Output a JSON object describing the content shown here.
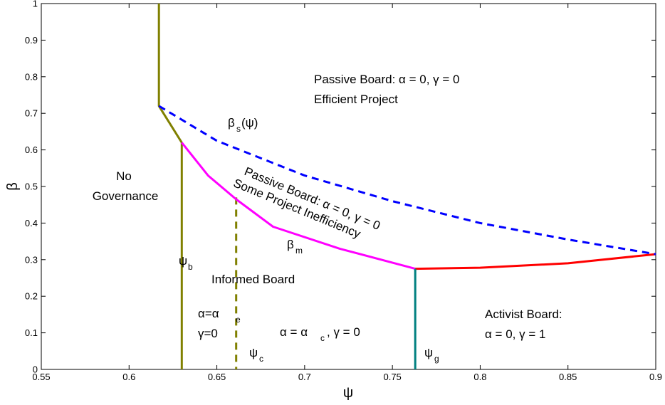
{
  "chart_data": {
    "type": "line",
    "xlabel": "ψ",
    "ylabel": "β",
    "xlim": [
      0.55,
      0.9
    ],
    "ylim": [
      0,
      1
    ],
    "xticks": [
      "0.55",
      "0.6",
      "0.65",
      "0.7",
      "0.75",
      "0.8",
      "0.85",
      "0.9"
    ],
    "yticks": [
      "0",
      "0.1",
      "0.2",
      "0.3",
      "0.4",
      "0.5",
      "0.6",
      "0.7",
      "0.8",
      "0.9",
      "1"
    ],
    "grid": false,
    "series": [
      {
        "color": "#808000",
        "dash": "solid",
        "x": [
          0.617,
          0.617,
          0.63,
          0.63
        ],
        "y": [
          1.0,
          0.72,
          0.62,
          0.0
        ]
      },
      {
        "color": "#808000",
        "dash": "dashed",
        "x": [
          0.661,
          0.661
        ],
        "y": [
          0.47,
          0.0
        ]
      },
      {
        "color": "#ff00ff",
        "dash": "solid",
        "x": [
          0.63,
          0.645,
          0.661,
          0.682,
          0.72,
          0.763
        ],
        "y": [
          0.62,
          0.53,
          0.465,
          0.39,
          0.33,
          0.275
        ]
      },
      {
        "color": "#ff0000",
        "dash": "solid",
        "x": [
          0.763,
          0.8,
          0.85,
          0.9
        ],
        "y": [
          0.275,
          0.278,
          0.29,
          0.315
        ]
      },
      {
        "color": "#0000ff",
        "dash": "dashed",
        "x": [
          0.617,
          0.65,
          0.7,
          0.75,
          0.8,
          0.85,
          0.9
        ],
        "y": [
          0.72,
          0.625,
          0.53,
          0.46,
          0.4,
          0.355,
          0.315
        ]
      },
      {
        "color": "#008080",
        "dash": "solid",
        "x": [
          0.763,
          0.763
        ],
        "y": [
          0.275,
          0.0
        ]
      }
    ],
    "annotations": {
      "passive_efficient_1": "Passive Board: α = 0, γ = 0",
      "passive_efficient_2": "Efficient Project",
      "beta_s": "β",
      "beta_s_sub": "s",
      "beta_s_arg": "(ψ)",
      "no_gov_1": "No",
      "no_gov_2": "Governance",
      "passive_ineff_1": "Passive Board: α = 0, γ = 0",
      "passive_ineff_2": "Some Project Inefficiency",
      "beta_m": "β",
      "beta_m_sub": "m",
      "psi_b": "ψ",
      "psi_b_sub": "b",
      "informed": "Informed Board",
      "alpha_e": "α=α",
      "alpha_e_sub": "e",
      "gamma0": "γ=0",
      "alpha_c": "α = α",
      "alpha_c_sub": "c",
      "alpha_c_rest": ", γ = 0",
      "psi_c": "ψ",
      "psi_c_sub": "c",
      "activist_1": "Activist Board:",
      "activist_2": "α = 0, γ = 1",
      "psi_g": "ψ",
      "psi_g_sub": "g"
    }
  }
}
